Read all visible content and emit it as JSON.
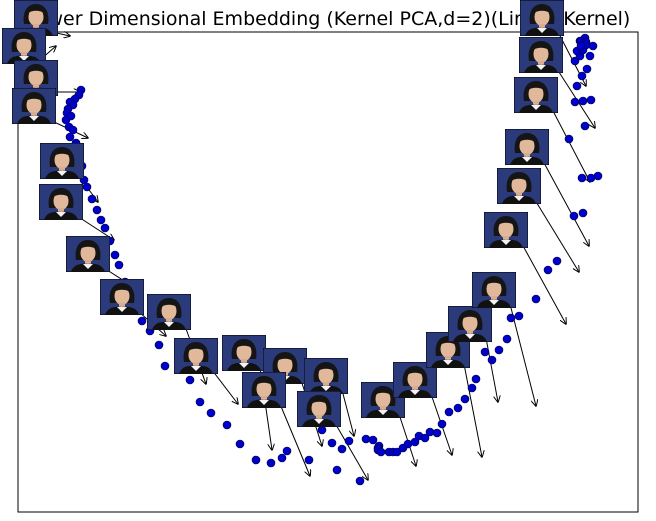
{
  "chart_data": {
    "type": "scatter",
    "title": "Lower Dimensional Embedding (Kernel PCA,d=2)(Linear Kernel)",
    "xlabel": "",
    "ylabel": "",
    "xlim": [
      0,
      620
    ],
    "ylim": [
      -480,
      0
    ],
    "grid": false,
    "axis_ticks": false,
    "marker_color": "#0000cc",
    "marker_edge_color": "#000033",
    "face_thumbnail_bg": "#2b3a7a",
    "points": [
      [
        63,
        -58
      ],
      [
        61,
        -63
      ],
      [
        57,
        -67
      ],
      [
        52,
        -70
      ],
      [
        55,
        -73
      ],
      [
        50,
        -77
      ],
      [
        49,
        -81
      ],
      [
        53,
        -84
      ],
      [
        48,
        -88
      ],
      [
        51,
        -95
      ],
      [
        55,
        -98
      ],
      [
        52,
        -105
      ],
      [
        58,
        -111
      ],
      [
        60,
        -121
      ],
      [
        64,
        -134
      ],
      [
        66,
        -148
      ],
      [
        69,
        -155
      ],
      [
        74,
        -167
      ],
      [
        79,
        -178
      ],
      [
        83,
        -188
      ],
      [
        87,
        -196
      ],
      [
        92,
        -209
      ],
      [
        97,
        -223
      ],
      [
        101,
        -233
      ],
      [
        107,
        -250
      ],
      [
        112,
        -262
      ],
      [
        118,
        -275
      ],
      [
        124,
        -289
      ],
      [
        132,
        -299
      ],
      [
        141,
        -313
      ],
      [
        147,
        -334
      ],
      [
        172,
        -348
      ],
      [
        182,
        -370
      ],
      [
        193,
        -381
      ],
      [
        209,
        -393
      ],
      [
        222,
        -412
      ],
      [
        238,
        -428
      ],
      [
        253,
        -431
      ],
      [
        264,
        -426
      ],
      [
        269,
        -419
      ],
      [
        291,
        -428
      ],
      [
        304,
        -398
      ],
      [
        314,
        -411
      ],
      [
        319,
        -438
      ],
      [
        324,
        -417
      ],
      [
        331,
        -409
      ],
      [
        342,
        -449
      ],
      [
        348,
        -407
      ],
      [
        355,
        -408
      ],
      [
        361,
        -414
      ],
      [
        360,
        -416
      ],
      [
        360,
        -418
      ],
      [
        363,
        -420
      ],
      [
        371,
        -420
      ],
      [
        375,
        -420
      ],
      [
        379,
        -420
      ],
      [
        385,
        -416
      ],
      [
        390,
        -412
      ],
      [
        397,
        -410
      ],
      [
        401,
        -404
      ],
      [
        407,
        -406
      ],
      [
        412,
        -400
      ],
      [
        419,
        -401
      ],
      [
        424,
        -392
      ],
      [
        431,
        -380
      ],
      [
        440,
        -376
      ],
      [
        447,
        -367
      ],
      [
        454,
        -356
      ],
      [
        458,
        -347
      ],
      [
        467,
        -320
      ],
      [
        474,
        -328
      ],
      [
        481,
        -318
      ],
      [
        489,
        -307
      ],
      [
        493,
        -286
      ],
      [
        501,
        -284
      ],
      [
        518,
        -267
      ],
      [
        530,
        -238
      ],
      [
        539,
        -229
      ],
      [
        556,
        -184
      ],
      [
        565,
        -181
      ],
      [
        564,
        -146
      ],
      [
        580,
        -144
      ],
      [
        551,
        -107
      ],
      [
        557,
        -70
      ],
      [
        565,
        -69
      ],
      [
        573,
        -68
      ],
      [
        559,
        -54
      ],
      [
        564,
        -44
      ],
      [
        569,
        -37
      ],
      [
        557,
        -29
      ],
      [
        562,
        -24
      ],
      [
        559,
        -19
      ],
      [
        565,
        -18
      ],
      [
        567,
        -6
      ],
      [
        562,
        -9
      ],
      [
        563,
        -9
      ],
      [
        568,
        -10
      ],
      [
        568,
        -13
      ],
      [
        563,
        -14
      ],
      [
        572,
        -24
      ],
      [
        575,
        -14
      ],
      [
        567,
        -94
      ],
      [
        573,
        -146
      ]
    ],
    "thumbnail_count": 26
  }
}
